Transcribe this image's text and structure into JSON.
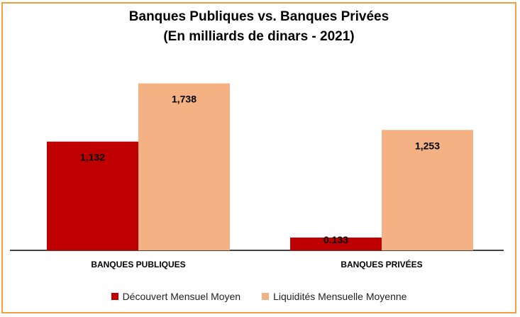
{
  "chart_data": {
    "type": "bar",
    "title": "Banques Publiques vs. Banques Privées",
    "subtitle": "(En milliards de dinars - 2021)",
    "categories": [
      "BANQUES PUBLIQUES",
      "BANQUES PRIVÉES"
    ],
    "series": [
      {
        "name": "Découvert Mensuel Moyen",
        "color": "#c00000",
        "values": [
          1.132,
          0.133
        ],
        "labels": [
          "1,132",
          "0.133"
        ]
      },
      {
        "name": "Liquidités Mensuelle Moyenne",
        "color": "#f4b183",
        "values": [
          1.738,
          1.253
        ],
        "labels": [
          "1,738",
          "1,253"
        ]
      }
    ],
    "ylim": [
      0,
      2.2
    ],
    "grid": false,
    "legend": "bottom"
  }
}
